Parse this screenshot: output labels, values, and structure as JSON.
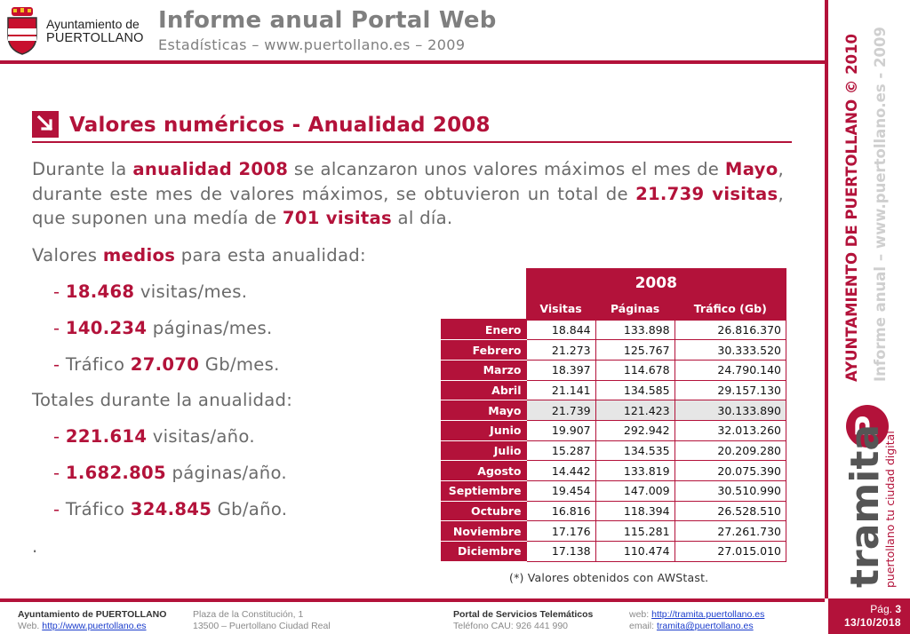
{
  "header": {
    "logo_line1": "Ayuntamiento de",
    "logo_line2": "PUERTOLLANO",
    "title": "Informe anual Portal Web",
    "subtitle": "Estadísticas – www.puertollano.es – 2009"
  },
  "side": {
    "vertical_line1": "AYUNTAMIENTO DE PUERTOLLANO © 2010",
    "vertical_line2": "Informe anual – www.puertollano.es - 2009",
    "brand_word": "tramita",
    "brand_tagline_a": "puertollano",
    "brand_tagline_b": " tu ciudad digital",
    "brand_letter": "P"
  },
  "section": {
    "title": "Valores numéricos - Anualidad 2008"
  },
  "body": {
    "p1_a": "Durante la ",
    "p1_b": "anualidad 2008",
    "p1_c": " se alcanzaron unos valores máximos el mes de ",
    "p1_d": "Mayo",
    "p1_e": ", durante este mes de valores máximos, se obtuvieron un total de ",
    "p1_f": "21.739 visitas",
    "p1_g": ", que suponen una medía de ",
    "p1_h": "701 visitas",
    "p1_i": " al día.",
    "medios_a": "Valores ",
    "medios_b": "medios",
    "medios_c": " para esta anualidad:",
    "m1_v": "18.468",
    "m1_t": " visitas/mes.",
    "m2_v": "140.234",
    "m2_t": " páginas/mes.",
    "m3_a": "Tráfico ",
    "m3_v": "27.070",
    "m3_t": " Gb/mes.",
    "totales": "Totales durante la anualidad:",
    "t1_v": "221.614",
    "t1_t": " visitas/año.",
    "t2_v": "1.682.805",
    "t2_t": " páginas/año.",
    "t3_a": "Tráfico ",
    "t3_v": "324.845",
    "t3_t": " Gb/año.",
    "dot": ".",
    "dash": "- "
  },
  "chart_data": {
    "type": "table",
    "title": "2008",
    "columns": [
      "Visitas",
      "Páginas",
      "Tráfico (Gb)"
    ],
    "rows": [
      {
        "month": "Enero",
        "visitas": "18.844",
        "paginas": "133.898",
        "trafico": "26.816.370"
      },
      {
        "month": "Febrero",
        "visitas": "21.273",
        "paginas": "125.767",
        "trafico": "30.333.520"
      },
      {
        "month": "Marzo",
        "visitas": "18.397",
        "paginas": "114.678",
        "trafico": "24.790.140"
      },
      {
        "month": "Abril",
        "visitas": "21.141",
        "paginas": "134.585",
        "trafico": "29.157.130"
      },
      {
        "month": "Mayo",
        "visitas": "21.739",
        "paginas": "121.423",
        "trafico": "30.133.890",
        "highlight": true
      },
      {
        "month": "Junio",
        "visitas": "19.907",
        "paginas": "292.942",
        "trafico": "32.013.260"
      },
      {
        "month": "Julio",
        "visitas": "15.287",
        "paginas": "134.535",
        "trafico": "20.209.280"
      },
      {
        "month": "Agosto",
        "visitas": "14.442",
        "paginas": "133.819",
        "trafico": "20.075.390"
      },
      {
        "month": "Septiembre",
        "visitas": "19.454",
        "paginas": "147.009",
        "trafico": "30.510.990"
      },
      {
        "month": "Octubre",
        "visitas": "16.816",
        "paginas": "118.394",
        "trafico": "26.528.510"
      },
      {
        "month": "Noviembre",
        "visitas": "17.176",
        "paginas": "115.281",
        "trafico": "27.261.730"
      },
      {
        "month": "Diciembre",
        "visitas": "17.138",
        "paginas": "110.474",
        "trafico": "27.015.010"
      }
    ],
    "note": "(*) Valores obtenidos con AWStast."
  },
  "footer": {
    "c1_l1": "Ayuntamiento de PUERTOLLANO",
    "c1_l2_a": "Web. ",
    "c1_l2_link": "http://www.puertollano.es",
    "c2_l1": "Plaza de la Constitución, 1",
    "c2_l2": "13500 – Puertollano Ciudad Real",
    "c3_l1": "Portal de Servicios Telemáticos",
    "c3_l2": "Teléfono CAU: 926 441 990",
    "c4_l1_a": "web: ",
    "c4_l1_link": "http://tramita.puertollano.es",
    "c4_l2_a": "email: ",
    "c4_l2_link": "tramita@puertollano.es",
    "page_label": "Pág. ",
    "page_number": "3",
    "date": "13/10/2018"
  },
  "colors": {
    "accent": "#b3123a",
    "gray_title": "#7f7f7f",
    "body_text": "#6a6a6a",
    "highlight_row": "#e6e6e6"
  }
}
